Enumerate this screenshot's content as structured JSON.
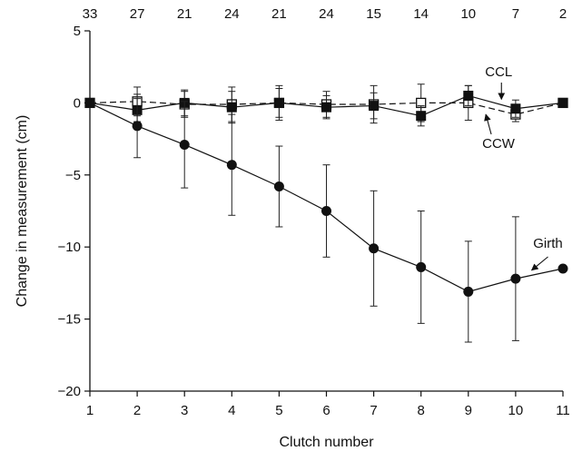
{
  "chart_data": {
    "type": "line",
    "xlabel": "Clutch number",
    "ylabel": "Change in measurement (cm)",
    "x": [
      1,
      2,
      3,
      4,
      5,
      6,
      7,
      8,
      9,
      10,
      11
    ],
    "xlim": [
      1,
      11
    ],
    "ylim": [
      -20,
      5
    ],
    "yticks": [
      5,
      0,
      -5,
      -10,
      -15,
      -20
    ],
    "ytick_labels": [
      "5",
      "0",
      "−5",
      "−10",
      "−15",
      "−20"
    ],
    "xtick_labels": [
      "1",
      "2",
      "3",
      "4",
      "5",
      "6",
      "7",
      "8",
      "9",
      "10",
      "11"
    ],
    "top_axis_labels": [
      "33",
      "27",
      "21",
      "24",
      "21",
      "24",
      "15",
      "14",
      "10",
      "7",
      "2"
    ],
    "grid": false,
    "series": [
      {
        "name": "Girth",
        "marker": "filled-circle",
        "line": "solid",
        "y": [
          0,
          -1.6,
          -2.9,
          -4.3,
          -5.8,
          -7.5,
          -10.1,
          -11.4,
          -13.1,
          -12.2,
          -11.5
        ],
        "error": [
          0,
          2.2,
          3.0,
          3.5,
          2.8,
          3.2,
          4.0,
          3.9,
          3.5,
          4.3,
          0
        ]
      },
      {
        "name": "CCL",
        "marker": "filled-square",
        "line": "solid",
        "y": [
          0,
          -0.5,
          0,
          -0.3,
          0,
          -0.3,
          -0.2,
          -0.9,
          0.5,
          -0.4,
          0
        ],
        "error": [
          0,
          0.8,
          0.9,
          1.1,
          1.0,
          0.8,
          0.9,
          0.7,
          0.7,
          0.6,
          0
        ]
      },
      {
        "name": "CCW",
        "marker": "open-square",
        "line": "dashed",
        "y": [
          0,
          0.1,
          -0.1,
          -0.1,
          0,
          -0.1,
          -0.1,
          0,
          0,
          -0.8,
          0
        ],
        "error": [
          0,
          1.0,
          0.9,
          1.2,
          1.2,
          0.9,
          1.3,
          1.3,
          1.2,
          0.5,
          0
        ]
      }
    ],
    "annotations": [
      {
        "text": "CCL",
        "target_series": "CCL",
        "target_x": 9.7
      },
      {
        "text": "CCW",
        "target_series": "CCW",
        "target_x": 9.6
      },
      {
        "text": "Girth",
        "target_series": "Girth",
        "target_x": 10.3
      }
    ]
  }
}
